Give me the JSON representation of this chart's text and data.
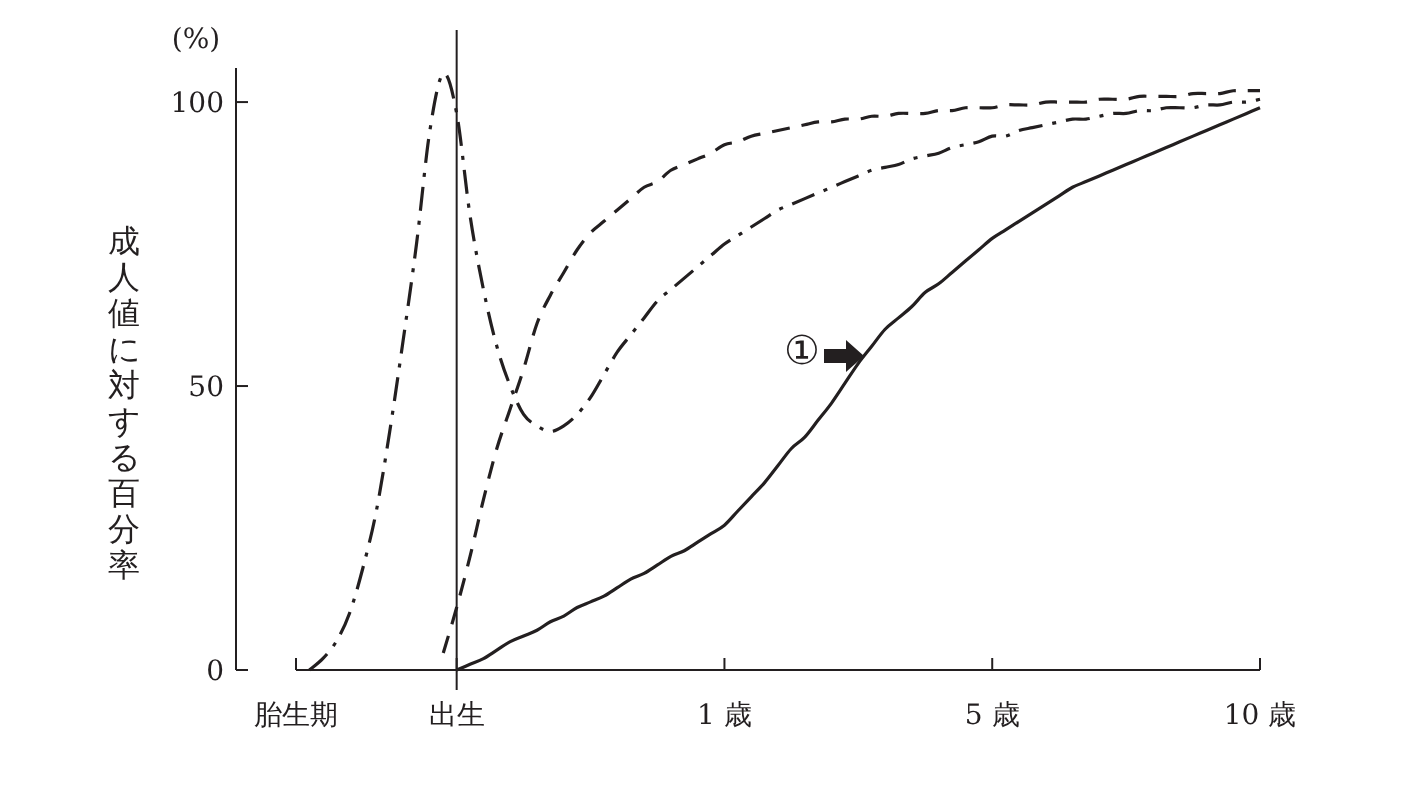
{
  "chart_data": {
    "type": "line",
    "ylabel": "成人値に対する百分率",
    "annotations": [
      "(%)",
      "①"
    ],
    "categories": [
      "胎生期",
      null,
      null,
      null,
      null,
      null,
      null,
      null,
      null,
      null,
      null,
      null,
      "出生",
      null,
      null,
      null,
      null,
      null,
      null,
      null,
      null,
      null,
      null,
      null,
      null,
      null,
      null,
      null,
      null,
      null,
      null,
      null,
      "1 歳",
      null,
      null,
      null,
      null,
      null,
      null,
      null,
      null,
      null,
      null,
      null,
      null,
      null,
      null,
      null,
      null,
      null,
      null,
      null,
      "5 歳",
      null,
      null,
      null,
      null,
      null,
      null,
      null,
      null,
      null,
      null,
      null,
      null,
      null,
      null,
      null,
      null,
      null,
      null,
      null,
      "10 歳"
    ],
    "ylim": [
      0,
      106
    ],
    "yticks": [
      0,
      50,
      100
    ],
    "ref_lines": [
      {
        "axis": "x",
        "value": "出生",
        "color": "#231f20"
      }
    ],
    "series": [
      {
        "color": "#231f20",
        "line_style": "dashdot",
        "values": [
          null,
          0,
          2,
          5,
          10,
          18,
          28,
          42,
          58,
          75,
          95,
          105,
          98,
          80,
          67,
          57,
          50,
          45,
          43,
          42,
          43,
          45,
          48,
          52,
          56,
          59,
          62,
          65,
          67,
          69,
          71,
          73,
          75,
          76.5,
          78,
          79.5,
          81,
          82,
          83,
          84,
          85,
          86,
          87,
          88,
          88.5,
          89,
          90,
          90.5,
          91,
          92,
          92.5,
          93,
          94,
          94,
          95,
          95.5,
          96,
          96.5,
          97,
          97,
          97.5,
          98,
          98,
          98.5,
          98.5,
          99,
          99,
          99,
          99.5,
          99.5,
          100,
          100,
          100.5
        ]
      },
      {
        "color": "#231f20",
        "line_style": "dashed",
        "values": [
          null,
          null,
          null,
          null,
          null,
          null,
          null,
          null,
          null,
          null,
          null,
          3,
          11,
          20,
          30,
          39,
          46,
          53,
          61,
          66,
          70,
          74,
          77,
          79,
          81,
          83,
          85,
          86,
          88,
          89,
          90,
          91,
          92.5,
          93,
          94,
          94.5,
          95,
          95.5,
          96,
          96.5,
          96.5,
          97,
          97,
          97.5,
          97.5,
          98,
          98,
          98,
          98.5,
          98.5,
          99,
          99,
          99,
          99.5,
          99.5,
          99.5,
          100,
          100,
          100,
          100,
          100.5,
          100.5,
          100.5,
          101,
          101,
          101,
          101,
          101.5,
          101.5,
          101.5,
          102,
          102,
          102
        ]
      },
      {
        "color": "#231f20",
        "line_style": "solid",
        "values": [
          null,
          null,
          null,
          null,
          null,
          null,
          null,
          null,
          null,
          null,
          null,
          null,
          0,
          1,
          2,
          3.5,
          5,
          6,
          7,
          8.5,
          9.5,
          11,
          12,
          13,
          14.5,
          16,
          17,
          18.5,
          20,
          21,
          22.5,
          24,
          25.5,
          28,
          30.5,
          33,
          36,
          39,
          41,
          44,
          47,
          50.5,
          54,
          57,
          60,
          62,
          64,
          66.5,
          68,
          70,
          72,
          74,
          76,
          77.5,
          79,
          80.5,
          82,
          83.5,
          85,
          86,
          87,
          88,
          89,
          90,
          91,
          92,
          93,
          94,
          95,
          96,
          97,
          98,
          99
        ]
      }
    ]
  }
}
